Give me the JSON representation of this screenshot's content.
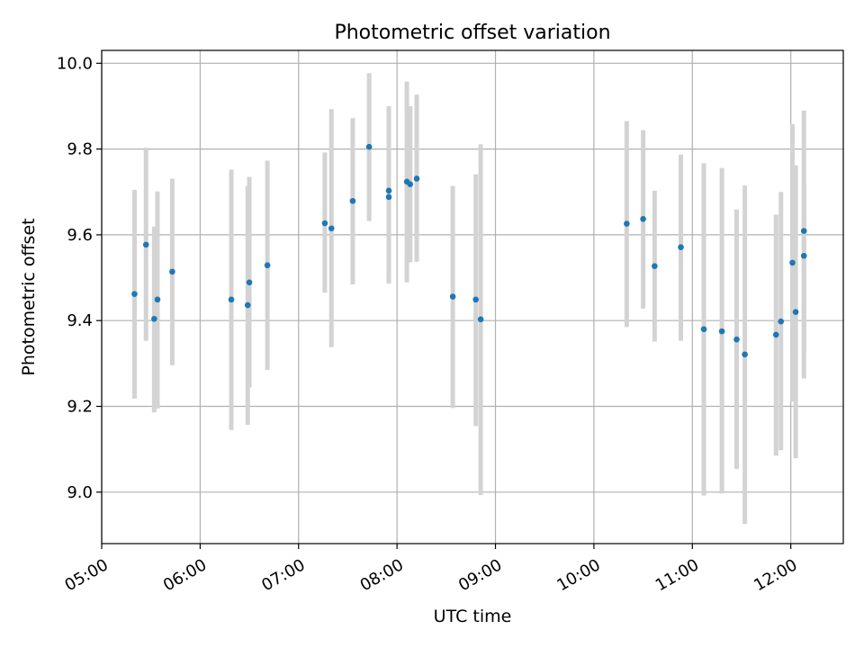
{
  "chart_data": {
    "type": "scatter",
    "title": "Photometric offset variation",
    "xlabel": "UTC time",
    "ylabel": "Photometric offset",
    "x_ticks": [
      "05:00",
      "06:00",
      "07:00",
      "08:00",
      "09:00",
      "10:00",
      "11:00",
      "12:00"
    ],
    "x_tick_hours": [
      5,
      6,
      7,
      8,
      9,
      10,
      11,
      12
    ],
    "xlim": [
      "05:00",
      "12:32"
    ],
    "y_ticks": [
      "9.0",
      "9.2",
      "9.4",
      "9.6",
      "9.8",
      "10.0"
    ],
    "y_tick_values": [
      9.0,
      9.2,
      9.4,
      9.6,
      9.8,
      10.0
    ],
    "ylim": [
      8.88,
      10.03
    ],
    "grid": true,
    "colors": {
      "point": "#1f77b4",
      "errorbar": "#d3d3d3",
      "grid": "#b0b0b0"
    },
    "points": [
      {
        "t": "05:20",
        "y": 9.462,
        "ylo": 9.218,
        "yhi": 9.705
      },
      {
        "t": "05:27",
        "y": 9.577,
        "ylo": 9.353,
        "yhi": 9.803
      },
      {
        "t": "05:32",
        "y": 9.404,
        "ylo": 9.186,
        "yhi": 9.619
      },
      {
        "t": "05:34",
        "y": 9.449,
        "ylo": 9.195,
        "yhi": 9.701
      },
      {
        "t": "05:43",
        "y": 9.514,
        "ylo": 9.296,
        "yhi": 9.731
      },
      {
        "t": "06:19",
        "y": 9.449,
        "ylo": 9.145,
        "yhi": 9.752
      },
      {
        "t": "06:29",
        "y": 9.436,
        "ylo": 9.157,
        "yhi": 9.714
      },
      {
        "t": "06:30",
        "y": 9.489,
        "ylo": 9.244,
        "yhi": 9.735
      },
      {
        "t": "06:41",
        "y": 9.529,
        "ylo": 9.285,
        "yhi": 9.773
      },
      {
        "t": "07:16",
        "y": 9.627,
        "ylo": 9.465,
        "yhi": 9.792
      },
      {
        "t": "07:20",
        "y": 9.615,
        "ylo": 9.338,
        "yhi": 9.893
      },
      {
        "t": "07:33",
        "y": 9.679,
        "ylo": 9.484,
        "yhi": 9.872
      },
      {
        "t": "07:43",
        "y": 9.805,
        "ylo": 9.632,
        "yhi": 9.977
      },
      {
        "t": "07:55",
        "y": 9.688,
        "ylo": 9.486,
        "yhi": 9.888
      },
      {
        "t": "07:55",
        "y": 9.703,
        "ylo": 9.505,
        "yhi": 9.9
      },
      {
        "t": "08:06",
        "y": 9.724,
        "ylo": 9.489,
        "yhi": 9.957
      },
      {
        "t": "08:08",
        "y": 9.718,
        "ylo": 9.536,
        "yhi": 9.9
      },
      {
        "t": "08:12",
        "y": 9.731,
        "ylo": 9.537,
        "yhi": 9.927
      },
      {
        "t": "08:34",
        "y": 9.456,
        "ylo": 9.196,
        "yhi": 9.714
      },
      {
        "t": "08:48",
        "y": 9.449,
        "ylo": 9.154,
        "yhi": 9.741
      },
      {
        "t": "08:51",
        "y": 9.403,
        "ylo": 8.993,
        "yhi": 9.811
      },
      {
        "t": "10:20",
        "y": 9.626,
        "ylo": 9.385,
        "yhi": 9.865
      },
      {
        "t": "10:30",
        "y": 9.637,
        "ylo": 9.428,
        "yhi": 9.844
      },
      {
        "t": "10:37",
        "y": 9.527,
        "ylo": 9.351,
        "yhi": 9.703
      },
      {
        "t": "10:53",
        "y": 9.571,
        "ylo": 9.353,
        "yhi": 9.787
      },
      {
        "t": "11:07",
        "y": 9.38,
        "ylo": 8.992,
        "yhi": 9.767
      },
      {
        "t": "11:18",
        "y": 9.375,
        "ylo": 8.997,
        "yhi": 9.756
      },
      {
        "t": "11:27",
        "y": 9.356,
        "ylo": 9.054,
        "yhi": 9.659
      },
      {
        "t": "11:32",
        "y": 9.321,
        "ylo": 8.926,
        "yhi": 9.715
      },
      {
        "t": "11:51",
        "y": 9.367,
        "ylo": 9.085,
        "yhi": 9.647
      },
      {
        "t": "11:54",
        "y": 9.398,
        "ylo": 9.098,
        "yhi": 9.7
      },
      {
        "t": "12:01",
        "y": 9.535,
        "ylo": 9.211,
        "yhi": 9.858
      },
      {
        "t": "12:03",
        "y": 9.42,
        "ylo": 9.079,
        "yhi": 9.762
      },
      {
        "t": "12:08",
        "y": 9.551,
        "ylo": 9.327,
        "yhi": 9.718
      },
      {
        "t": "12:08",
        "y": 9.609,
        "ylo": 9.265,
        "yhi": 9.89
      }
    ]
  }
}
